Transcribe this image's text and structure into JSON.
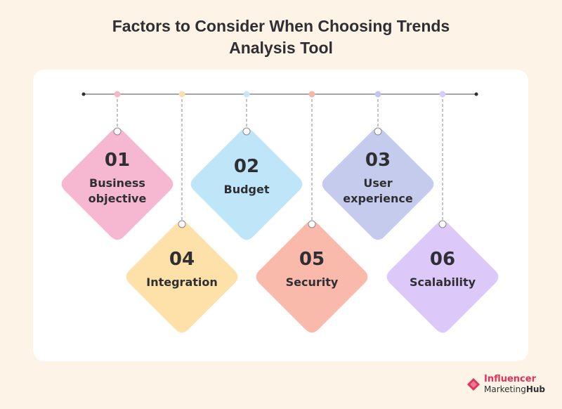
{
  "title_line1": "Factors to Consider When Choosing Trends",
  "title_line2": "Analysis Tool",
  "colors": {
    "background": "#fdf3e6",
    "timeline": "#6f6f74",
    "text": "#2f2f33"
  },
  "factors": [
    {
      "number": "01",
      "label_line1": "Business",
      "label_line2": "objective",
      "color": "#f5b8d0",
      "dot": "#f2b9c9"
    },
    {
      "number": "02",
      "label_line1": "Budget",
      "label_line2": "",
      "color": "#bfe6f8",
      "dot": "#c6e8f6"
    },
    {
      "number": "03",
      "label_line1": "User",
      "label_line2": "experience",
      "color": "#c5cbec",
      "dot": "#c4c6eb"
    },
    {
      "number": "04",
      "label_line1": "Integration",
      "label_line2": "",
      "color": "#fde1a8",
      "dot": "#f9e0ae"
    },
    {
      "number": "05",
      "label_line1": "Security",
      "label_line2": "",
      "color": "#f9b9ab",
      "dot": "#f5b7aa"
    },
    {
      "number": "06",
      "label_line1": "Scalability",
      "label_line2": "",
      "color": "#dcc9fa",
      "dot": "#d8cdf5"
    }
  ],
  "logo": {
    "line1": "Influencer",
    "line2a": "Marketing",
    "line2b": "Hub",
    "color": "#e4335a"
  }
}
